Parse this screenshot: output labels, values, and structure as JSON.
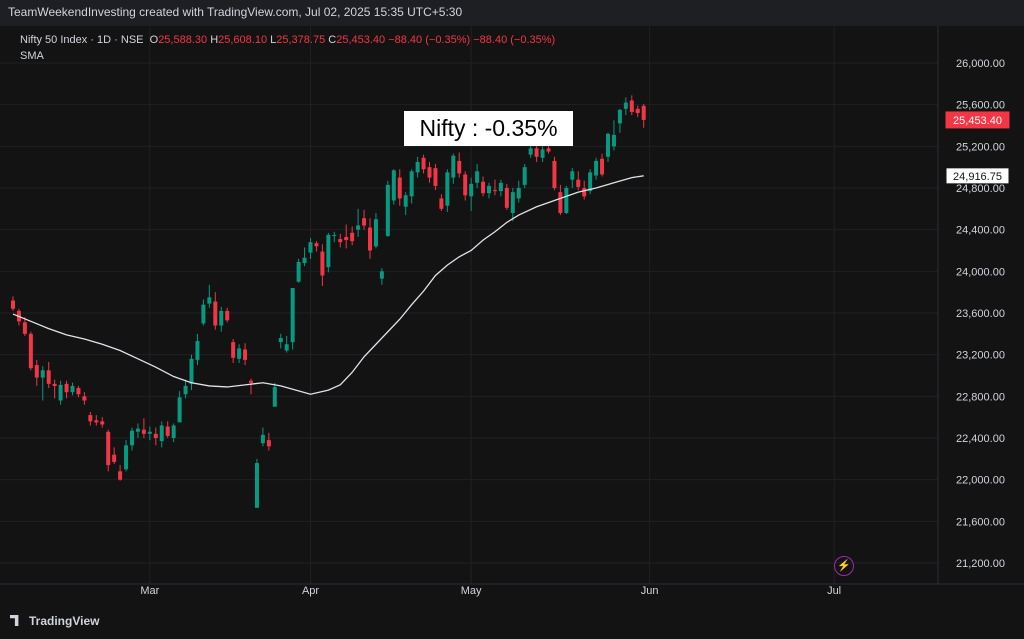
{
  "header": {
    "text": "TeamWeekendInvesting created with TradingView.com, Jul 02, 2025 15:35 UTC+5:30"
  },
  "legend": {
    "symbol": "Nifty 50 Index · 1D · NSE",
    "o_label": "O",
    "o": "25,588.30",
    "h_label": "H",
    "h": "25,608.10",
    "l_label": "L",
    "l": "25,378.75",
    "c_label": "C",
    "c": "25,453.40",
    "change": "−88.40 (−0.35%)",
    "change2": "−88.40 (−0.35%)",
    "indicator": "SMA"
  },
  "annotation": "Nifty : -0.35%",
  "price_tags": {
    "last": "25,453.40",
    "sma": "24,916.75"
  },
  "brand": "TradingView",
  "colors": {
    "up": "#089981",
    "down": "#f23645",
    "sma": "#e0e3eb",
    "bg": "#131313",
    "grid": "#1f2125",
    "text": "#d1d4dc"
  },
  "icons": {
    "alert": "lightning-icon",
    "logo": "tradingview-logo-icon"
  },
  "chart_data": {
    "type": "candlestick",
    "title": "Nifty 50 Index · 1D · NSE",
    "ylim": [
      21100,
      26150
    ],
    "y_ticks": [
      21200,
      21600,
      22000,
      22400,
      22800,
      23200,
      23600,
      24000,
      24400,
      24800,
      25200,
      25600,
      26000
    ],
    "y_tick_labels": [
      "21,200.00",
      "21,600.00",
      "22,000.00",
      "22,400.00",
      "22,800.00",
      "23,200.00",
      "23,600.00",
      "24,000.00",
      "24,400.00",
      "24,800.00",
      "25,200.00",
      "25,600.00",
      "26,000.00"
    ],
    "x_month_labels": [
      {
        "label": "Mar",
        "index": 23
      },
      {
        "label": "Apr",
        "index": 50
      },
      {
        "label": "May",
        "index": 77
      },
      {
        "label": "Jun",
        "index": 107
      },
      {
        "label": "Jul",
        "index": 138
      }
    ],
    "candles": [
      [
        23720,
        23760,
        23620,
        23640
      ],
      [
        23620,
        23640,
        23480,
        23520
      ],
      [
        23510,
        23560,
        23380,
        23400
      ],
      [
        23400,
        23420,
        23050,
        23070
      ],
      [
        23100,
        23150,
        22900,
        22980
      ],
      [
        22980,
        23090,
        22760,
        23050
      ],
      [
        23050,
        23130,
        22880,
        22920
      ],
      [
        22920,
        22960,
        22780,
        22900
      ],
      [
        22760,
        22950,
        22720,
        22910
      ],
      [
        22920,
        22950,
        22780,
        22840
      ],
      [
        22840,
        22930,
        22810,
        22900
      ],
      [
        22880,
        22900,
        22790,
        22820
      ],
      [
        22800,
        22840,
        22720,
        22760
      ],
      [
        22620,
        22650,
        22520,
        22560
      ],
      [
        22570,
        22620,
        22520,
        22550
      ],
      [
        22560,
        22600,
        22500,
        22530
      ],
      [
        22460,
        22480,
        22080,
        22140
      ],
      [
        22240,
        22310,
        22150,
        22170
      ],
      [
        22080,
        22140,
        21990,
        22000
      ],
      [
        22100,
        22380,
        22080,
        22330
      ],
      [
        22330,
        22500,
        22280,
        22470
      ],
      [
        22460,
        22540,
        22400,
        22490
      ],
      [
        22480,
        22590,
        22400,
        22440
      ],
      [
        22440,
        22510,
        22380,
        22460
      ],
      [
        22440,
        22500,
        22330,
        22400
      ],
      [
        22370,
        22560,
        22310,
        22520
      ],
      [
        22510,
        22560,
        22400,
        22420
      ],
      [
        22400,
        22540,
        22360,
        22520
      ],
      [
        22550,
        22850,
        22600,
        22790
      ],
      [
        22820,
        22960,
        22780,
        22900
      ],
      [
        22920,
        23200,
        22860,
        23160
      ],
      [
        23150,
        23400,
        23100,
        23330
      ],
      [
        23500,
        23730,
        23480,
        23680
      ],
      [
        23690,
        23870,
        23650,
        23750
      ],
      [
        23710,
        23800,
        23440,
        23480
      ],
      [
        23480,
        23660,
        23420,
        23620
      ],
      [
        23620,
        23650,
        23510,
        23530
      ],
      [
        23320,
        23350,
        23120,
        23170
      ],
      [
        23160,
        23300,
        23120,
        23260
      ],
      [
        23250,
        23310,
        23100,
        23150
      ],
      [
        22950,
        22970,
        22820,
        22930
      ],
      [
        21730,
        22200,
        21730,
        22160
      ],
      [
        22350,
        22500,
        22320,
        22430
      ],
      [
        22380,
        22450,
        22280,
        22320
      ],
      [
        22700,
        22930,
        22720,
        22890
      ],
      [
        23320,
        23400,
        23260,
        23360
      ],
      [
        23240,
        23380,
        23220,
        23300
      ],
      [
        23320,
        23840,
        23250,
        23840
      ],
      [
        23900,
        24120,
        23890,
        24090
      ],
      [
        24080,
        24230,
        24050,
        24130
      ],
      [
        24180,
        24320,
        24120,
        24280
      ],
      [
        24270,
        24290,
        24190,
        24240
      ],
      [
        24190,
        24260,
        23860,
        23960
      ],
      [
        24040,
        24370,
        23990,
        24350
      ],
      [
        24340,
        24380,
        24280,
        24350
      ],
      [
        24310,
        24360,
        24230,
        24280
      ],
      [
        24330,
        24450,
        24220,
        24300
      ],
      [
        24370,
        24430,
        24250,
        24290
      ],
      [
        24400,
        24600,
        24330,
        24440
      ],
      [
        24510,
        24590,
        24400,
        24440
      ],
      [
        24420,
        24510,
        24120,
        24200
      ],
      [
        24240,
        24560,
        24220,
        24500
      ],
      [
        23930,
        24030,
        23870,
        24000
      ],
      [
        24340,
        24870,
        24330,
        24830
      ],
      [
        24680,
        24980,
        24640,
        24970
      ],
      [
        24900,
        24980,
        24630,
        24700
      ],
      [
        24620,
        24760,
        24540,
        24730
      ],
      [
        24720,
        24980,
        24650,
        24960
      ],
      [
        24950,
        25100,
        24900,
        25050
      ],
      [
        25090,
        25120,
        24940,
        24980
      ],
      [
        25000,
        25050,
        24850,
        24900
      ],
      [
        24990,
        25030,
        24780,
        24820
      ],
      [
        24700,
        24740,
        24580,
        24600
      ],
      [
        24630,
        24980,
        24570,
        24950
      ],
      [
        24900,
        25130,
        24840,
        25110
      ],
      [
        25060,
        25140,
        24900,
        24940
      ],
      [
        24930,
        24960,
        24680,
        24730
      ],
      [
        24720,
        24900,
        24580,
        24840
      ],
      [
        24850,
        25030,
        24800,
        24960
      ],
      [
        24860,
        24910,
        24720,
        24750
      ],
      [
        24750,
        24850,
        24700,
        24820
      ],
      [
        24780,
        24880,
        24730,
        24770
      ],
      [
        24770,
        24880,
        24720,
        24850
      ],
      [
        24800,
        24840,
        24590,
        24610
      ],
      [
        24560,
        24800,
        24480,
        24760
      ],
      [
        24700,
        24870,
        24660,
        24800
      ],
      [
        24830,
        25030,
        24800,
        25000
      ],
      [
        25120,
        25220,
        25090,
        25180
      ],
      [
        25180,
        25210,
        25050,
        25100
      ],
      [
        25090,
        25200,
        25050,
        25170
      ],
      [
        25180,
        25220,
        25130,
        25150
      ],
      [
        25060,
        25100,
        24780,
        24800
      ],
      [
        24760,
        24830,
        24540,
        24560
      ],
      [
        24560,
        24820,
        24550,
        24800
      ],
      [
        24880,
        24990,
        24800,
        24960
      ],
      [
        24880,
        24960,
        24780,
        24810
      ],
      [
        24800,
        24870,
        24690,
        24720
      ],
      [
        24770,
        24980,
        24740,
        24950
      ],
      [
        24920,
        25090,
        24880,
        25060
      ],
      [
        25080,
        25130,
        24910,
        24930
      ],
      [
        25100,
        25330,
        25050,
        25320
      ],
      [
        25200,
        25450,
        25160,
        25310
      ],
      [
        25420,
        25560,
        25330,
        25550
      ],
      [
        25560,
        25670,
        25500,
        25620
      ],
      [
        25640,
        25690,
        25500,
        25530
      ],
      [
        25560,
        25590,
        25480,
        25520
      ],
      [
        25588.3,
        25608.1,
        25378.75,
        25453.4
      ]
    ],
    "x_index_of_candles": [
      0,
      1,
      2,
      3,
      4,
      5,
      6,
      7,
      8,
      9,
      10,
      11,
      12,
      13,
      14,
      15,
      16,
      17,
      18,
      19,
      20,
      21,
      22,
      23,
      24,
      25,
      26,
      27,
      28,
      29,
      30,
      31,
      32,
      33,
      34,
      35,
      36,
      37,
      38,
      39,
      40,
      41,
      42,
      43,
      44,
      45,
      46,
      47,
      48,
      49,
      50,
      51,
      52,
      53,
      54,
      55,
      56,
      57,
      58,
      59,
      60,
      61,
      62,
      63,
      64,
      65,
      66,
      67,
      68,
      69,
      70,
      71,
      72,
      73,
      74,
      75,
      76,
      77,
      78,
      79,
      80,
      81,
      82,
      83,
      84,
      85,
      86,
      87,
      88,
      89,
      90,
      91,
      92,
      93,
      94,
      95,
      96,
      97,
      98,
      99,
      100,
      101,
      102,
      103,
      104,
      105,
      106
    ],
    "sma": [
      23590,
      23520,
      23450,
      23390,
      23350,
      23300,
      23240,
      23160,
      23080,
      22990,
      22930,
      22900,
      22890,
      22910,
      22930,
      22900,
      22820,
      22860,
      22910,
      23030,
      23180,
      23300,
      23420,
      23540,
      23680,
      23810,
      23960,
      24060,
      24140,
      24200,
      24300,
      24380,
      24470,
      24540,
      24620,
      24680,
      24760,
      24800,
      24850,
      24900,
      24917
    ],
    "sma_x": [
      0,
      3,
      6,
      9,
      12,
      15,
      18,
      21,
      24,
      27,
      30,
      33,
      36,
      39,
      42,
      45,
      50,
      53,
      55,
      57,
      59,
      61,
      63,
      65,
      67,
      69,
      71,
      73,
      75,
      77,
      79,
      81,
      83,
      85,
      88,
      91,
      95,
      98,
      101,
      104,
      106
    ]
  }
}
